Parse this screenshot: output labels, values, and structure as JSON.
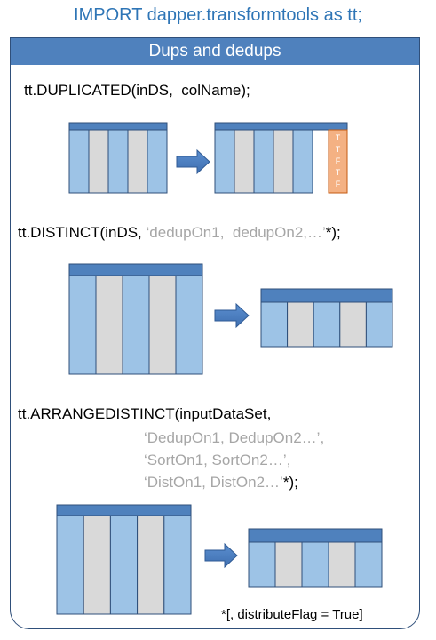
{
  "header": {
    "title": "IMPORT dapper.transformtools as tt;"
  },
  "panel": {
    "title": "Dups and dedups"
  },
  "sections": {
    "duplicated": {
      "code": "tt.DUPLICATED(inDS,  colName);",
      "flag_letters": [
        "T",
        "T",
        "F",
        "T",
        "F"
      ]
    },
    "distinct": {
      "code_prefix": "tt.DISTINCT(inDS, ",
      "code_args": "‘dedupOn1,  dedupOn2,…’",
      "code_suffix": "*);"
    },
    "arrangedistinct": {
      "code_line1": "tt.ARRANGEDISTINCT(inputDataSet,",
      "code_line2": "‘DedupOn1, DedupOn2…’,",
      "code_line3": "‘SortOn1, SortOn2…’,",
      "code_line4_args": "‘DistOn1, DistOn2…’",
      "code_line4_suffix": "*);"
    }
  },
  "footnote": "*[, distributeFlag = True]",
  "colors": {
    "blue_column": "#9dc3e6",
    "grey_column": "#d9d9d9",
    "header_bar": "#4f81bd",
    "border": "#2f4f7a",
    "flag_column": "#f4b183",
    "arrow": "#4f81bd"
  }
}
